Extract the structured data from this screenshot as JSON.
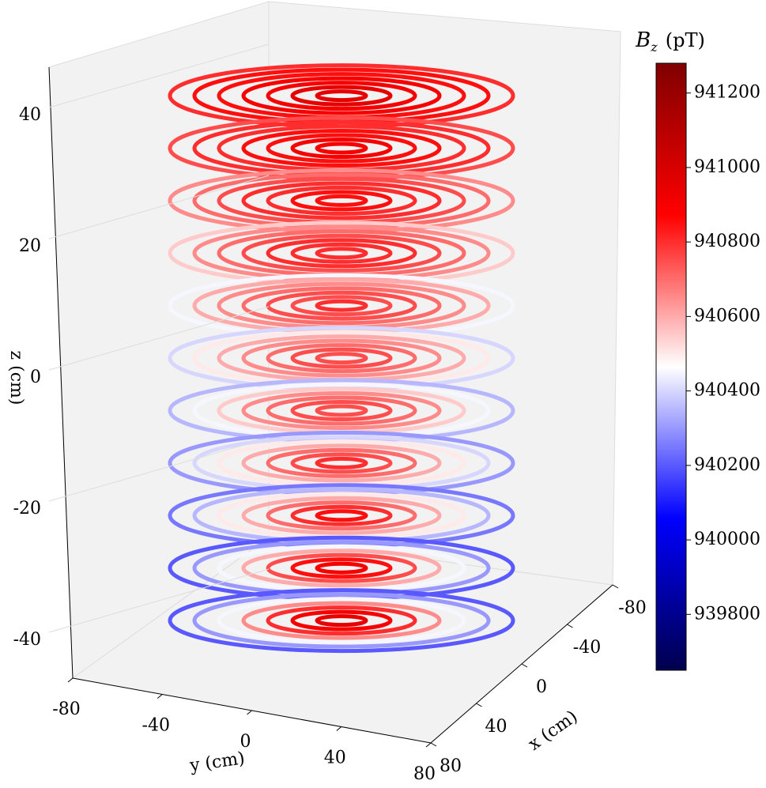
{
  "chart_data": {
    "type": "scatter3d",
    "xlabel": "x (cm)",
    "ylabel": "y (cm)",
    "zlabel": "z (cm)",
    "xlim": [
      -80,
      80
    ],
    "xticks": [
      -80,
      -40,
      0,
      40,
      80
    ],
    "ylim": [
      -80,
      80
    ],
    "yticks": [
      -80,
      -40,
      0,
      40,
      80
    ],
    "zlim": [
      -45,
      48
    ],
    "zticks": [
      -40,
      -20,
      0,
      20,
      40
    ],
    "colorbar_label": {
      "symbol": "B",
      "subscript": "z",
      "unit": "(pT)"
    },
    "colormap": "seismic",
    "clim": [
      939650,
      941280
    ],
    "cticks": [
      939800,
      940000,
      940200,
      940400,
      940600,
      940800,
      941000,
      941200
    ],
    "radii": [
      10,
      20,
      30,
      40,
      50,
      60,
      70
    ],
    "z_levels": [
      43,
      35,
      27,
      19,
      11,
      3,
      -5,
      -13,
      -21,
      -29,
      -37
    ],
    "values": [
      [
        940950,
        940950,
        940900,
        940900,
        940850,
        940850,
        940800
      ],
      [
        940900,
        940900,
        940850,
        940850,
        940800,
        940800,
        940750
      ],
      [
        940850,
        940850,
        940800,
        940800,
        940750,
        940700,
        940650
      ],
      [
        940800,
        940800,
        940800,
        940750,
        940700,
        940650,
        940550
      ],
      [
        940800,
        940750,
        940750,
        940700,
        940650,
        940600,
        940450
      ],
      [
        940750,
        940750,
        940700,
        940650,
        940600,
        940500,
        940400
      ],
      [
        940750,
        940750,
        940700,
        940650,
        940550,
        940450,
        940350
      ],
      [
        940800,
        940750,
        940700,
        940600,
        940500,
        940400,
        940300
      ],
      [
        940850,
        940800,
        940700,
        940600,
        940500,
        940350,
        940250
      ],
      [
        940900,
        940850,
        940750,
        940600,
        940450,
        940300,
        940200
      ],
      [
        940950,
        940900,
        940800,
        940650,
        940450,
        940300,
        940200
      ]
    ]
  }
}
